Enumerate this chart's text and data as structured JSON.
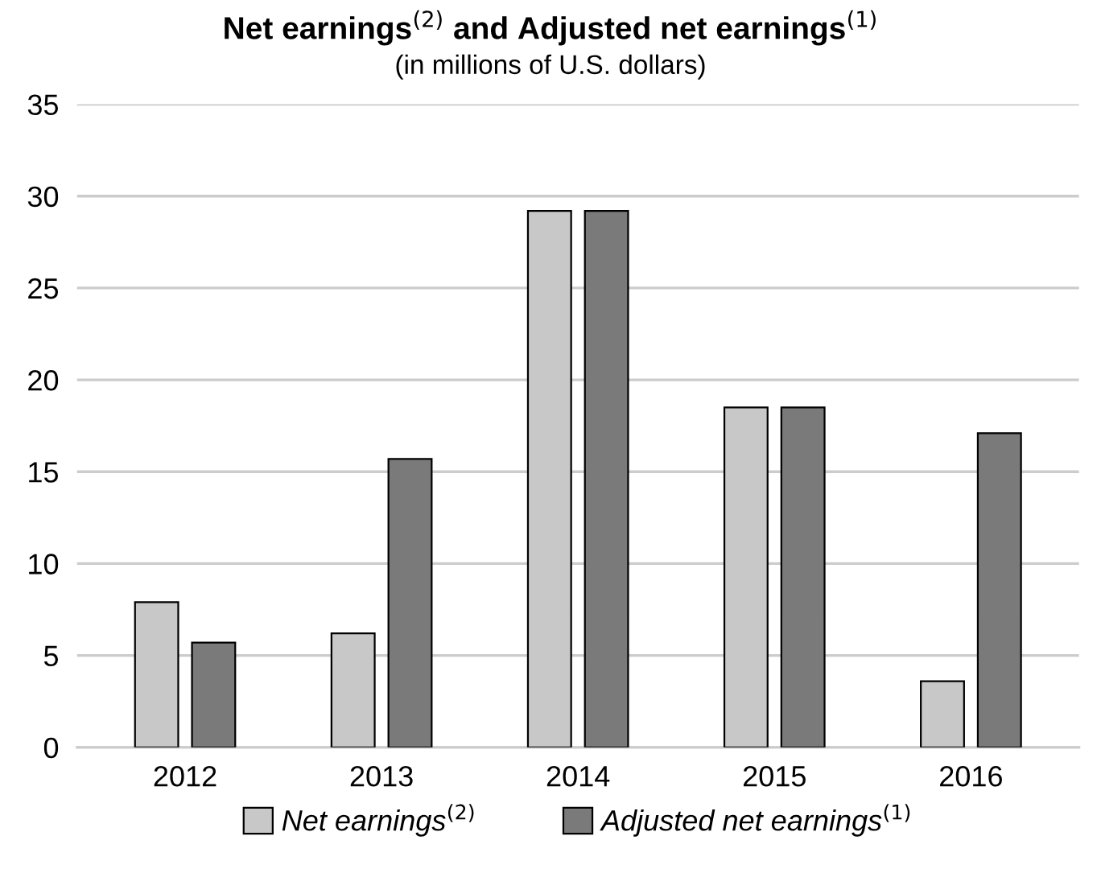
{
  "chart_data": {
    "type": "bar",
    "title": "Net earnings$^{(2)}$ and Adjusted net earnings$^{(1)}$",
    "subtitle": "(in millions of U.S. dollars)",
    "categories": [
      "2012",
      "2013",
      "2014",
      "2015",
      "2016"
    ],
    "series": [
      {
        "name": "Net earnings$^{(2)}$",
        "color": "#c8c8c8",
        "values": [
          7.9,
          6.2,
          29.2,
          18.5,
          3.6
        ]
      },
      {
        "name": "Adjusted net earnings$^{(1)}$",
        "color": "#7a7a7a",
        "values": [
          5.7,
          15.7,
          29.2,
          18.5,
          17.1
        ]
      }
    ],
    "ylim": [
      0,
      35
    ],
    "yticks": [
      0,
      5,
      10,
      15,
      20,
      25,
      30,
      35
    ],
    "grid": "y",
    "legend": "bottom"
  }
}
